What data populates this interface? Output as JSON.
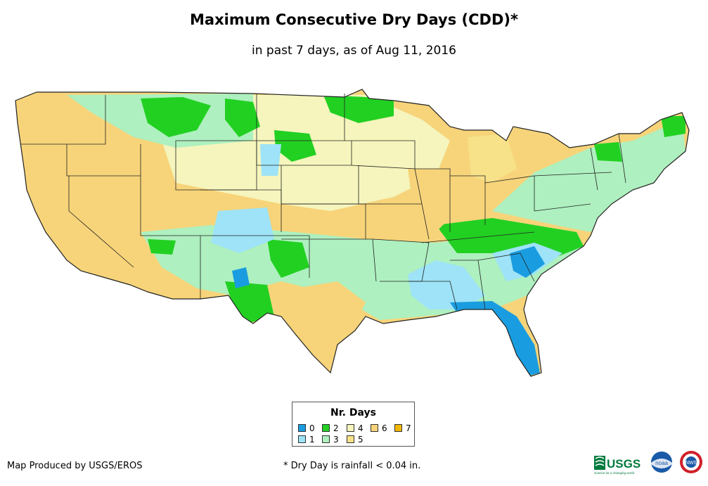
{
  "title": "Maximum Consecutive Dry Days (CDD)*",
  "subtitle": "in past 7 days, as of Aug 11, 2016",
  "legend": {
    "title": "Nr. Days",
    "items": [
      {
        "label": "0",
        "color": "#1a9de0"
      },
      {
        "label": "1",
        "color": "#9ee3f7"
      },
      {
        "label": "2",
        "color": "#22d022"
      },
      {
        "label": "3",
        "color": "#aef0bf"
      },
      {
        "label": "4",
        "color": "#f5f5bd"
      },
      {
        "label": "5",
        "color": "#f7e28a"
      },
      {
        "label": "6",
        "color": "#f7d47a"
      },
      {
        "label": "7",
        "color": "#f0b800"
      }
    ]
  },
  "colors": {
    "zero": "#1a9de0",
    "one": "#9ee3f7",
    "two": "#22d022",
    "three": "#aef0bf",
    "four": "#f5f5bd",
    "five": "#f7e28a",
    "six": "#f7d47a",
    "seven": "#f0b800",
    "border": "#222222"
  },
  "credit": "Map Produced by USGS/EROS",
  "footnote": "* Dry Day is rainfall < 0.04 in.",
  "logos": {
    "usgs": "USGS",
    "usgs_tagline": "science for a changing world",
    "noaa": "noaa",
    "nws": "NWS"
  }
}
